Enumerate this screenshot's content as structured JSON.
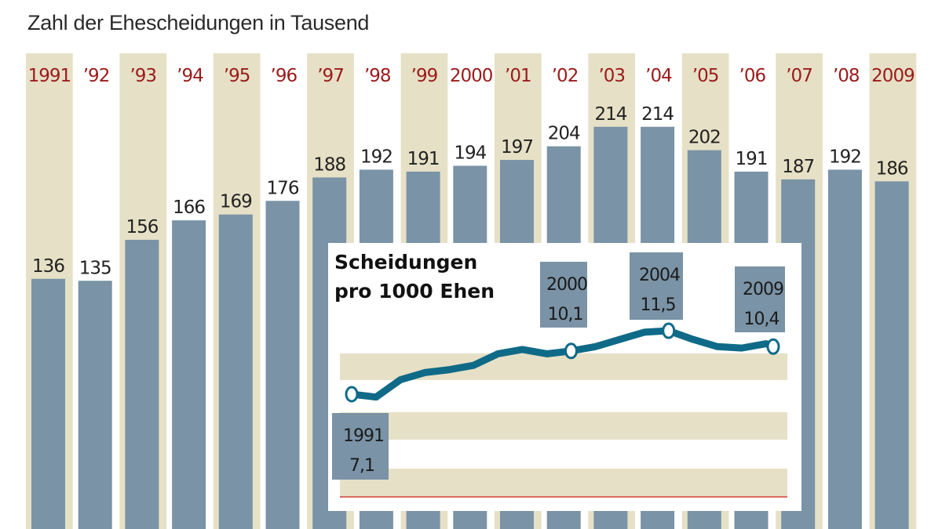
{
  "subtitle": "Zahl der Ehescheidungen in Tausend",
  "colors": {
    "bar": "#7a93a6",
    "band": "#e6e0c6",
    "year_label": "#9b1b1b",
    "line": "#0f6a88",
    "baseline": "#d03a2a"
  },
  "chart_data": [
    {
      "type": "bar",
      "title": "",
      "subtitle": "Zahl der Ehescheidungen in Tausend",
      "categories": [
        "1991",
        "’92",
        "’93",
        "’94",
        "’95",
        "’96",
        "’97",
        "’98",
        "’99",
        "2000",
        "’01",
        "’02",
        "’03",
        "’04",
        "’05",
        "’06",
        "’07",
        "’08",
        "2009"
      ],
      "values": [
        136,
        135,
        156,
        166,
        169,
        176,
        188,
        192,
        191,
        194,
        197,
        204,
        214,
        214,
        202,
        191,
        187,
        192,
        186
      ],
      "ylim": [
        0,
        220
      ],
      "grid": false,
      "data_labels": true
    },
    {
      "type": "line",
      "title": "Scheidungen pro 1000 Ehen",
      "title_lines": [
        "Scheidungen",
        "pro 1000 Ehen"
      ],
      "x": [
        1991,
        1992,
        1993,
        1994,
        1995,
        1996,
        1997,
        1998,
        1999,
        2000,
        2001,
        2002,
        2003,
        2004,
        2005,
        2006,
        2007,
        2008,
        2009
      ],
      "values": [
        7.1,
        6.9,
        8.1,
        8.6,
        8.8,
        9.1,
        9.9,
        10.2,
        9.9,
        10.1,
        10.4,
        10.9,
        11.4,
        11.5,
        10.9,
        10.4,
        10.3,
        10.6,
        10.4
      ],
      "annotations": [
        {
          "year": "1991",
          "value": "7,1"
        },
        {
          "year": "2000",
          "value": "10,1"
        },
        {
          "year": "2004",
          "value": "11,5"
        },
        {
          "year": "2009",
          "value": "10,4"
        }
      ],
      "grid": false
    }
  ]
}
